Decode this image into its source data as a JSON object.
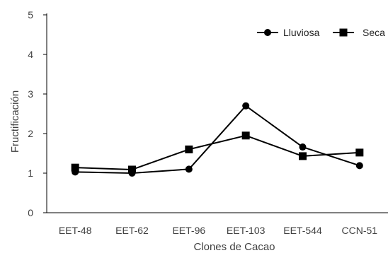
{
  "chart_data": {
    "type": "line",
    "title": "",
    "xlabel": "Clones de Cacao",
    "ylabel": "Fructificación",
    "categories": [
      "EET-48",
      "EET-62",
      "EET-96",
      "EET-103",
      "EET-544",
      "CCN-51"
    ],
    "ylim": [
      0,
      5
    ],
    "yticks": [
      "0",
      "1",
      "2",
      "3",
      "4",
      "5"
    ],
    "grid": false,
    "legend_position": "top-right",
    "series": [
      {
        "name": "Lluviosa",
        "marker": "circle",
        "values": [
          1.03,
          1.0,
          1.1,
          2.7,
          1.66,
          1.19
        ]
      },
      {
        "name": "Seca",
        "marker": "square",
        "values": [
          1.14,
          1.09,
          1.6,
          1.95,
          1.43,
          1.52
        ]
      }
    ],
    "colors": {
      "line": "#000000",
      "axis": "#000000",
      "text": "#404040"
    }
  }
}
